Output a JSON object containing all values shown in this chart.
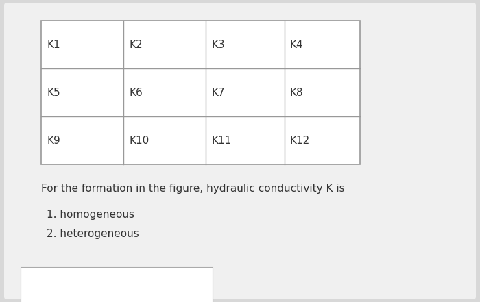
{
  "background_color": "#d8d8d8",
  "card_color": "#f0f0f0",
  "table_cells": [
    [
      "K1",
      "K2",
      "K3",
      "K4"
    ],
    [
      "K5",
      "K6",
      "K7",
      "K8"
    ],
    [
      "K9",
      "K10",
      "K11",
      "K12"
    ]
  ],
  "question_text": "For the formation in the figure, hydraulic conductivity K is",
  "options": [
    "1. homogeneous",
    "2. heterogeneous"
  ],
  "cell_font_size": 11,
  "question_font_size": 11,
  "option_font_size": 11,
  "line_color": "#999999",
  "text_color": "#333333"
}
